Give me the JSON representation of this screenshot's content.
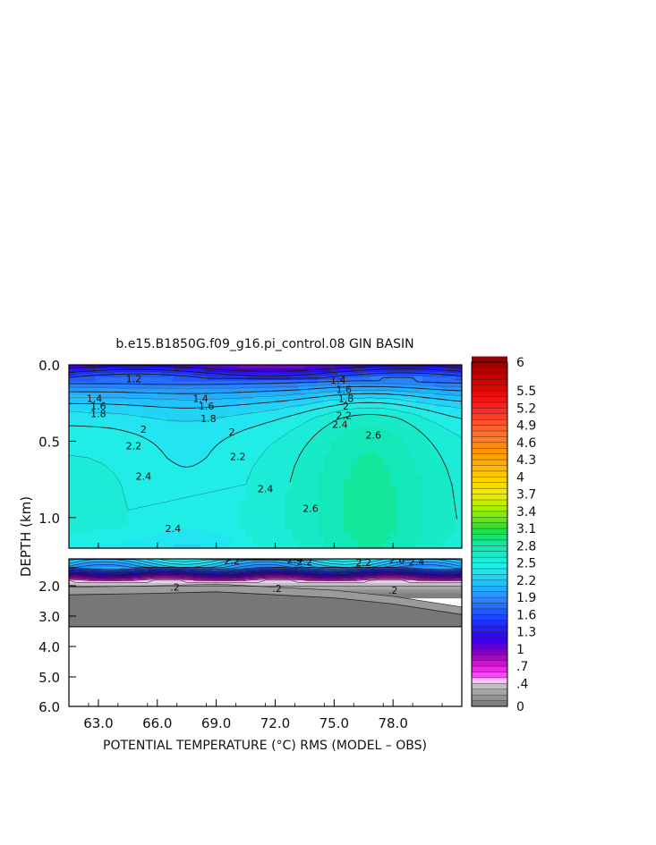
{
  "chart_data": {
    "type": "heatmap",
    "title": "b.e15.B1850G.f09_g16.pi_control.08 GIN BASIN",
    "xlabel": "POTENTIAL TEMPERATURE (°C) RMS (MODEL – OBS)",
    "ylabel": "DEPTH (km)",
    "xlim": [
      61.5,
      81.5
    ],
    "x_ticks": [
      {
        "value": 63,
        "label": "63.0"
      },
      {
        "value": 66,
        "label": "66.0"
      },
      {
        "value": 69,
        "label": "69.0"
      },
      {
        "value": 72,
        "label": "72.0"
      },
      {
        "value": 75,
        "label": "75.0"
      },
      {
        "value": 78,
        "label": "78.0"
      }
    ],
    "upper_panel": {
      "ylim": [
        0,
        1.2
      ],
      "y_ticks": [
        {
          "value": 0,
          "label": "0.0"
        },
        {
          "value": 0.5,
          "label": "0.5"
        },
        {
          "value": 1.0,
          "label": "1.0"
        }
      ]
    },
    "lower_panel": {
      "ylim": [
        1.2,
        6.0
      ],
      "y_ticks": [
        {
          "value": 2,
          "label": "2.0"
        },
        {
          "value": 3,
          "label": "3.0"
        },
        {
          "value": 4,
          "label": "4.0"
        },
        {
          "value": 5,
          "label": "5.0"
        },
        {
          "value": 6,
          "label": "6.0"
        }
      ],
      "seafloor_depth_km": [
        {
          "x": 61.5,
          "depth": 3.35
        },
        {
          "x": 81.5,
          "depth": 3.35
        }
      ],
      "bottom_layer_top_km": [
        {
          "x": 61.5,
          "depth": 2.3
        },
        {
          "x": 66.0,
          "depth": 2.25
        },
        {
          "x": 69.0,
          "depth": 2.2
        },
        {
          "x": 72.0,
          "depth": 2.3
        },
        {
          "x": 75.0,
          "depth": 2.4
        },
        {
          "x": 78.0,
          "depth": 2.6
        },
        {
          "x": 81.5,
          "depth": 2.95
        }
      ]
    },
    "contours_upper": [
      {
        "level": 1.2,
        "labels": [
          {
            "x": 64.8,
            "depth": 0.09
          }
        ]
      },
      {
        "level": 1.4,
        "labels": [
          {
            "x": 62.8,
            "depth": 0.22
          },
          {
            "x": 68.2,
            "depth": 0.22
          },
          {
            "x": 75.2,
            "depth": 0.1
          }
        ]
      },
      {
        "level": 1.6,
        "labels": [
          {
            "x": 63.0,
            "depth": 0.27
          },
          {
            "x": 68.5,
            "depth": 0.27
          },
          {
            "x": 75.5,
            "depth": 0.16
          }
        ]
      },
      {
        "level": 1.8,
        "labels": [
          {
            "x": 63.0,
            "depth": 0.32
          },
          {
            "x": 68.6,
            "depth": 0.35
          },
          {
            "x": 75.6,
            "depth": 0.22
          }
        ]
      },
      {
        "level": 2.0,
        "labels": [
          {
            "x": 65.3,
            "depth": 0.42
          },
          {
            "x": 69.8,
            "depth": 0.44
          },
          {
            "x": 75.6,
            "depth": 0.27
          }
        ]
      },
      {
        "level": 2.2,
        "labels": [
          {
            "x": 64.8,
            "depth": 0.53
          },
          {
            "x": 70.1,
            "depth": 0.6
          },
          {
            "x": 75.5,
            "depth": 0.33
          }
        ]
      },
      {
        "level": 2.4,
        "labels": [
          {
            "x": 65.3,
            "depth": 0.73
          },
          {
            "x": 71.5,
            "depth": 0.81
          },
          {
            "x": 75.3,
            "depth": 0.39
          },
          {
            "x": 66.8,
            "depth": 1.07
          }
        ]
      },
      {
        "level": 2.6,
        "labels": [
          {
            "x": 73.8,
            "depth": 0.94
          },
          {
            "x": 77.0,
            "depth": 0.46
          }
        ]
      }
    ],
    "contours_lower": [
      {
        "level": 2.2,
        "labels": [
          {
            "x": 69.8,
            "depth": 1.25
          },
          {
            "x": 73.5,
            "depth": 1.28
          },
          {
            "x": 76.5,
            "depth": 1.3
          }
        ]
      },
      {
        "level": 2.4,
        "labels": [
          {
            "x": 73.0,
            "depth": 1.22
          },
          {
            "x": 79.2,
            "depth": 1.28
          }
        ]
      },
      {
        "level": 2.6,
        "labels": [
          {
            "x": 78.2,
            "depth": 1.22
          }
        ]
      },
      {
        "level": 0.2,
        "labels": [
          {
            "x": 66.9,
            "depth": 2.04
          },
          {
            "x": 72.1,
            "depth": 2.09
          },
          {
            "x": 78.0,
            "depth": 2.14
          }
        ]
      }
    ],
    "colorbar": {
      "min": 0,
      "max": 6,
      "tick_labels": [
        {
          "value": 6,
          "label": "6"
        },
        {
          "value": 5.5,
          "label": "5.5"
        },
        {
          "value": 5.2,
          "label": "5.2"
        },
        {
          "value": 4.9,
          "label": "4.9"
        },
        {
          "value": 4.6,
          "label": "4.6"
        },
        {
          "value": 4.3,
          "label": "4.3"
        },
        {
          "value": 4,
          "label": "4"
        },
        {
          "value": 3.7,
          "label": "3.7"
        },
        {
          "value": 3.4,
          "label": "3.4"
        },
        {
          "value": 3.1,
          "label": "3.1"
        },
        {
          "value": 2.8,
          "label": "2.8"
        },
        {
          "value": 2.5,
          "label": "2.5"
        },
        {
          "value": 2.2,
          "label": "2.2"
        },
        {
          "value": 1.9,
          "label": "1.9"
        },
        {
          "value": 1.6,
          "label": "1.6"
        },
        {
          "value": 1.3,
          "label": "1.3"
        },
        {
          "value": 1,
          "label": "1"
        },
        {
          "value": 0.7,
          "label": ".7"
        },
        {
          "value": 0.4,
          "label": ".4"
        },
        {
          "value": 0,
          "label": "0"
        }
      ],
      "color_stops": [
        {
          "value": 0.0,
          "color": "#777777"
        },
        {
          "value": 0.2,
          "color": "#999999"
        },
        {
          "value": 0.38,
          "color": "#c8c8c8"
        },
        {
          "value": 0.42,
          "color": "#ffffff"
        },
        {
          "value": 0.5,
          "color": "#ff55ff"
        },
        {
          "value": 0.8,
          "color": "#cc00cc"
        },
        {
          "value": 1.0,
          "color": "#6600cc"
        },
        {
          "value": 1.2,
          "color": "#3300ee"
        },
        {
          "value": 1.5,
          "color": "#1a3aff"
        },
        {
          "value": 1.8,
          "color": "#2a78ff"
        },
        {
          "value": 2.1,
          "color": "#22b8ff"
        },
        {
          "value": 2.4,
          "color": "#22eeee"
        },
        {
          "value": 2.8,
          "color": "#11e8b0"
        },
        {
          "value": 3.1,
          "color": "#22dd33"
        },
        {
          "value": 3.4,
          "color": "#99ee00"
        },
        {
          "value": 3.7,
          "color": "#eeee00"
        },
        {
          "value": 4.0,
          "color": "#ffcc00"
        },
        {
          "value": 4.4,
          "color": "#ff9900"
        },
        {
          "value": 4.8,
          "color": "#ff6a33"
        },
        {
          "value": 5.2,
          "color": "#ff2222"
        },
        {
          "value": 5.6,
          "color": "#dd0000"
        },
        {
          "value": 6.0,
          "color": "#990000"
        }
      ]
    }
  }
}
